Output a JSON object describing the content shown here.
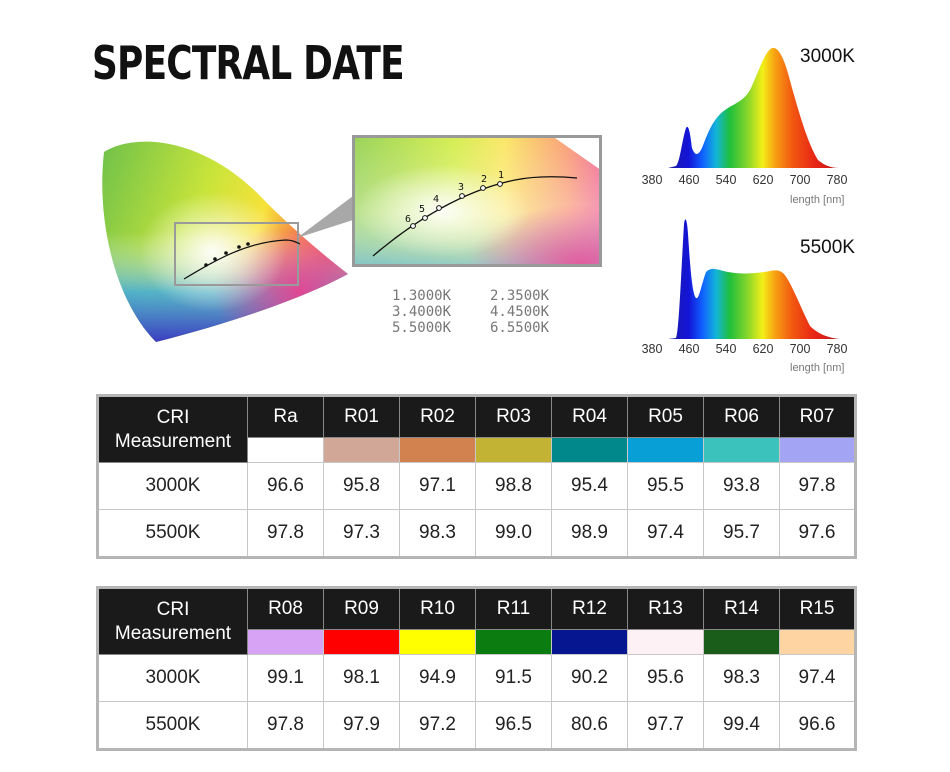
{
  "title": "SPECTRAL DATE",
  "zoom_points": [
    "1",
    "2",
    "3",
    "4",
    "5",
    "6"
  ],
  "legend": [
    [
      "1.3000K",
      "2.3500K"
    ],
    [
      "3.4000K",
      "4.4500K"
    ],
    [
      "5.5000K",
      "6.5500K"
    ]
  ],
  "spectra": [
    {
      "label": "3000K",
      "ticks": [
        "380",
        "460",
        "540",
        "620",
        "700",
        "780"
      ],
      "unit": "length [nm]"
    },
    {
      "label": "5500K",
      "ticks": [
        "380",
        "460",
        "540",
        "620",
        "700",
        "780"
      ],
      "unit": "length [nm]"
    }
  ],
  "tables": [
    {
      "label_line1": "CRI",
      "label_line2": "Measurement",
      "headers": [
        "Ra",
        "R01",
        "R02",
        "R03",
        "R04",
        "R05",
        "R06",
        "R07"
      ],
      "swatches": [
        "#ffffff",
        "#d1a797",
        "#d2824f",
        "#c3b335",
        "#00888a",
        "#089fd6",
        "#3bc2bd",
        "#a3a4f4"
      ],
      "rows": [
        {
          "label": "3000K",
          "values": [
            "96.6",
            "95.8",
            "97.1",
            "98.8",
            "95.4",
            "95.5",
            "93.8",
            "97.8"
          ]
        },
        {
          "label": "5500K",
          "values": [
            "97.8",
            "97.3",
            "98.3",
            "99.0",
            "98.9",
            "97.4",
            "95.7",
            "97.6"
          ]
        }
      ]
    },
    {
      "label_line1": "CRI",
      "label_line2": "Measurement",
      "headers": [
        "R08",
        "R09",
        "R10",
        "R11",
        "R12",
        "R13",
        "R14",
        "R15"
      ],
      "swatches": [
        "#d7a4f5",
        "#ff0000",
        "#ffff00",
        "#0a7c10",
        "#061590",
        "#fdf1f6",
        "#1a5d1a",
        "#ffd4a3"
      ],
      "rows": [
        {
          "label": "3000K",
          "values": [
            "99.1",
            "98.1",
            "94.9",
            "91.5",
            "90.2",
            "95.6",
            "98.3",
            "97.4"
          ]
        },
        {
          "label": "5500K",
          "values": [
            "97.8",
            "97.9",
            "97.2",
            "96.5",
            "80.6",
            "97.7",
            "99.4",
            "96.6"
          ]
        }
      ]
    }
  ]
}
